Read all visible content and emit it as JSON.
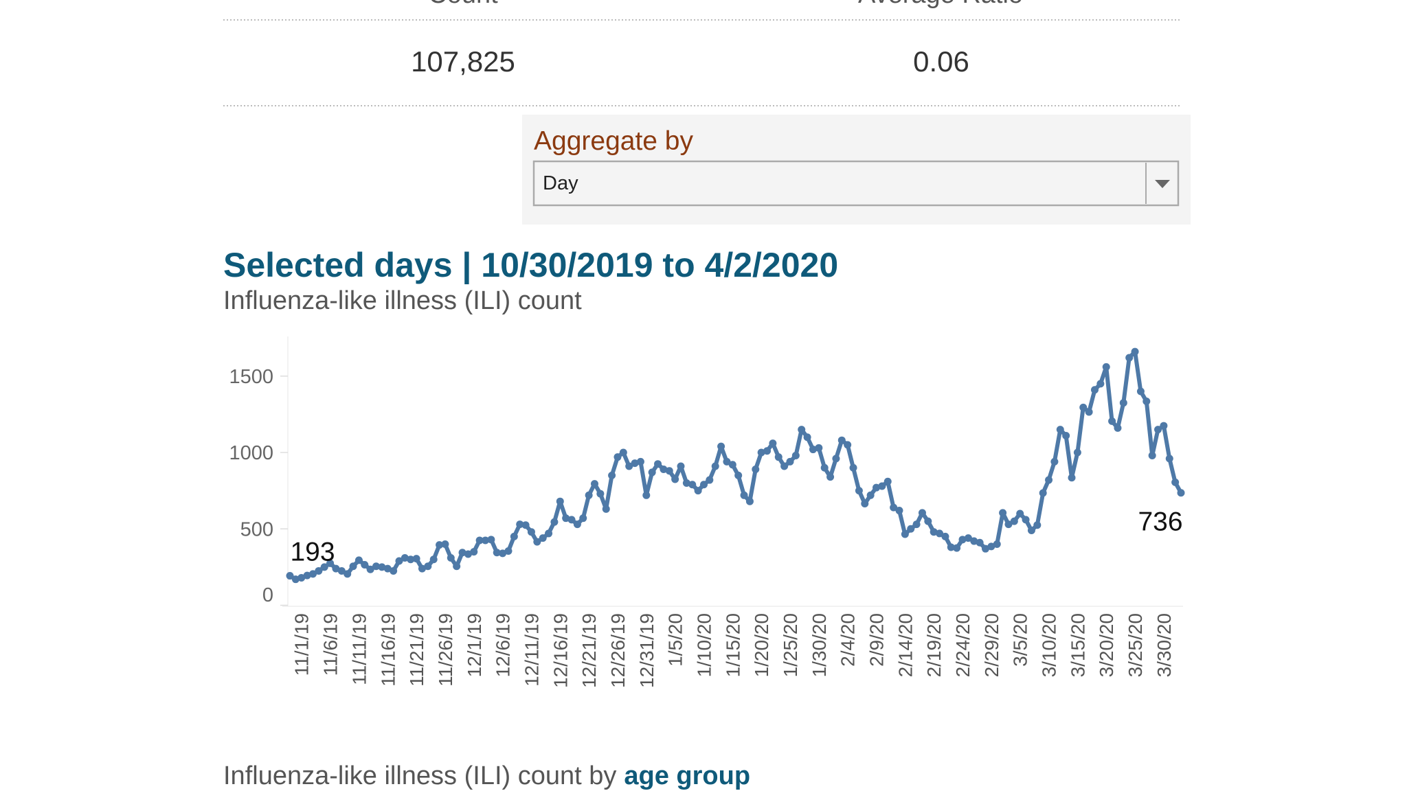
{
  "summary": {
    "columns": [
      {
        "label": "Count",
        "value": "107,825"
      },
      {
        "label": "Average Ratio",
        "value": "0.06"
      }
    ]
  },
  "filter": {
    "label": "Aggregate by",
    "selected": "Day"
  },
  "chart_data": {
    "type": "line",
    "title": "Selected days | 10/30/2019 to 4/2/2020",
    "subtitle": "Influenza-like illness (ILI) count",
    "categories": [
      null,
      null,
      "11/1/19",
      null,
      null,
      null,
      null,
      "11/6/19",
      null,
      null,
      null,
      null,
      "11/11/19",
      null,
      null,
      null,
      null,
      "11/16/19",
      null,
      null,
      null,
      null,
      "11/21/19",
      null,
      null,
      null,
      null,
      "11/26/19",
      null,
      null,
      null,
      null,
      "12/1/19",
      null,
      null,
      null,
      null,
      "12/6/19",
      null,
      null,
      null,
      null,
      "12/11/19",
      null,
      null,
      null,
      null,
      "12/16/19",
      null,
      null,
      null,
      null,
      "12/21/19",
      null,
      null,
      null,
      null,
      "12/26/19",
      null,
      null,
      null,
      null,
      "12/31/19",
      null,
      null,
      null,
      null,
      "1/5/20",
      null,
      null,
      null,
      null,
      "1/10/20",
      null,
      null,
      null,
      null,
      "1/15/20",
      null,
      null,
      null,
      null,
      "1/20/20",
      null,
      null,
      null,
      null,
      "1/25/20",
      null,
      null,
      null,
      null,
      "1/30/20",
      null,
      null,
      null,
      null,
      "2/4/20",
      null,
      null,
      null,
      null,
      "2/9/20",
      null,
      null,
      null,
      null,
      "2/14/20",
      null,
      null,
      null,
      null,
      "2/19/20",
      null,
      null,
      null,
      null,
      "2/24/20",
      null,
      null,
      null,
      null,
      "2/29/20",
      null,
      null,
      null,
      null,
      "3/5/20",
      null,
      null,
      null,
      null,
      "3/10/20",
      null,
      null,
      null,
      null,
      "3/15/20",
      null,
      null,
      null,
      null,
      "3/20/20",
      null,
      null,
      null,
      null,
      "3/25/20",
      null,
      null,
      null,
      null,
      "3/30/20",
      null,
      null,
      null
    ],
    "values": [
      193,
      170,
      180,
      195,
      205,
      225,
      250,
      275,
      240,
      225,
      205,
      255,
      295,
      265,
      235,
      255,
      250,
      240,
      225,
      290,
      310,
      300,
      305,
      240,
      255,
      300,
      395,
      400,
      310,
      255,
      345,
      335,
      350,
      425,
      425,
      430,
      345,
      340,
      355,
      450,
      530,
      525,
      480,
      415,
      440,
      470,
      545,
      680,
      570,
      560,
      530,
      570,
      720,
      795,
      730,
      630,
      850,
      970,
      1000,
      910,
      930,
      940,
      720,
      870,
      925,
      890,
      880,
      825,
      910,
      800,
      790,
      750,
      790,
      820,
      910,
      1040,
      940,
      920,
      850,
      720,
      680,
      890,
      1000,
      1010,
      1060,
      970,
      910,
      940,
      980,
      1150,
      1100,
      1020,
      1030,
      900,
      840,
      960,
      1080,
      1050,
      900,
      750,
      665,
      720,
      770,
      780,
      810,
      640,
      620,
      465,
      500,
      530,
      605,
      550,
      480,
      470,
      450,
      380,
      375,
      430,
      440,
      420,
      410,
      370,
      385,
      400,
      605,
      530,
      550,
      600,
      560,
      490,
      525,
      735,
      820,
      940,
      1150,
      1110,
      835,
      1000,
      1295,
      1265,
      1410,
      1450,
      1560,
      1205,
      1160,
      1325,
      1620,
      1660,
      1400,
      1335,
      980,
      1150,
      1175,
      960,
      805,
      736
    ],
    "color": "#4e79a7",
    "ylim": [
      0,
      1800
    ],
    "yticks": [
      0,
      500,
      1000,
      1500
    ],
    "grid": false,
    "labeled_points": [
      0,
      155
    ]
  },
  "next_section": {
    "title": "Influenza-like illness (ILI) count by",
    "highlight": "age group"
  }
}
